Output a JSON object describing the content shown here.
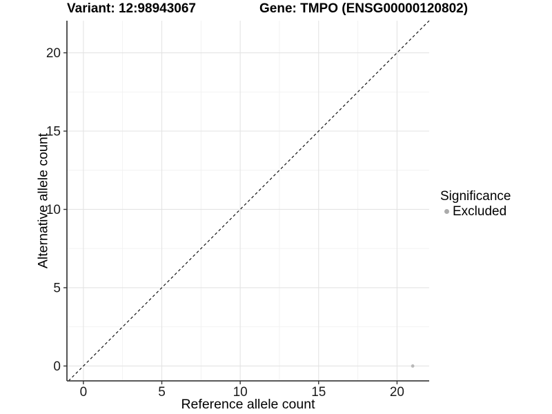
{
  "colors": {
    "background": "#ffffff",
    "axis_line": "#404040",
    "tick_mark": "#333333",
    "tick_label": "#1a1a1a",
    "grid_major": "#e3e3e3",
    "grid_minor": "#f1f1f1"
  },
  "chart_data": {
    "type": "scatter",
    "titles": [
      "Variant: 12:98943067",
      "Gene: TMPO (ENSG00000120802)"
    ],
    "xlabel": "Reference allele count",
    "ylabel": "Alternative allele count",
    "xlim": [
      -1.05,
      22.05
    ],
    "ylim": [
      -0.95,
      22.05
    ],
    "x_ticks": [
      0,
      5,
      10,
      15,
      20
    ],
    "y_ticks": [
      0,
      5,
      10,
      15,
      20
    ],
    "x_minor_ticks": [
      2.5,
      7.5,
      12.5,
      17.5
    ],
    "y_minor_ticks": [
      2.5,
      7.5,
      12.5,
      17.5
    ],
    "grid": true,
    "legend": {
      "title": "Significance",
      "position": "right",
      "items": [
        {
          "label": "Excluded",
          "color": "#ababab"
        }
      ]
    },
    "series": [
      {
        "name": "Excluded",
        "color": "#b9b9b9",
        "points": [
          [
            21,
            0
          ]
        ]
      }
    ],
    "reference_line": {
      "kind": "identity",
      "slope": 1,
      "intercept": 0,
      "style": "dashed",
      "color": "#111111"
    }
  }
}
